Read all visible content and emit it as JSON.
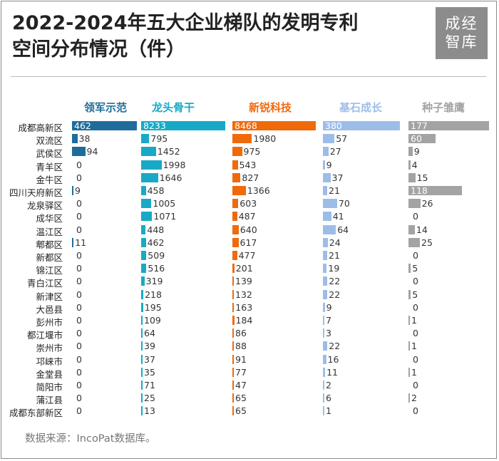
{
  "title_line1": "2022-2024年五大企业梯队的发明专利",
  "title_line2": "空间分布情况（件）",
  "logo": {
    "line1": "成经",
    "line2": "智库"
  },
  "source": "数据来源：IncoPat数据库。",
  "chart_data": {
    "type": "bar",
    "categories": [
      "成都高新区",
      "双流区",
      "武侯区",
      "青羊区",
      "金牛区",
      "四川天府新区",
      "龙泉驿区",
      "成华区",
      "温江区",
      "郫都区",
      "新都区",
      "锦江区",
      "青白江区",
      "新津区",
      "大邑县",
      "彭州市",
      "都江堰市",
      "崇州市",
      "邛崃市",
      "金堂县",
      "简阳市",
      "蒲江县",
      "成都东部新区"
    ],
    "series": [
      {
        "name": "领军示范",
        "color": "#1f6c9a",
        "values": [
          462,
          38,
          94,
          0,
          0,
          9,
          0,
          0,
          0,
          11,
          0,
          0,
          0,
          0,
          0,
          0,
          0,
          0,
          0,
          0,
          0,
          0,
          0
        ]
      },
      {
        "name": "龙头骨干",
        "color": "#18a9c6",
        "values": [
          8233,
          795,
          1452,
          1998,
          1646,
          458,
          1005,
          1071,
          448,
          462,
          509,
          516,
          319,
          218,
          195,
          109,
          64,
          39,
          37,
          35,
          71,
          25,
          13
        ]
      },
      {
        "name": "新锐科技",
        "color": "#f06a0c",
        "values": [
          8468,
          1980,
          975,
          543,
          827,
          1366,
          603,
          487,
          640,
          617,
          477,
          201,
          139,
          132,
          163,
          184,
          86,
          88,
          91,
          77,
          47,
          65,
          65
        ]
      },
      {
        "name": "基石成长",
        "color": "#9dbde9",
        "values": [
          380,
          57,
          27,
          9,
          37,
          21,
          70,
          41,
          64,
          24,
          21,
          19,
          22,
          22,
          9,
          7,
          3,
          22,
          16,
          11,
          2,
          6,
          1
        ]
      },
      {
        "name": "种子雏鹰",
        "color": "#a3a3a3",
        "values": [
          177,
          60,
          9,
          4,
          15,
          118,
          26,
          0,
          14,
          25,
          0,
          5,
          0,
          5,
          0,
          1,
          0,
          1,
          0,
          1,
          0,
          2,
          0
        ]
      }
    ]
  }
}
